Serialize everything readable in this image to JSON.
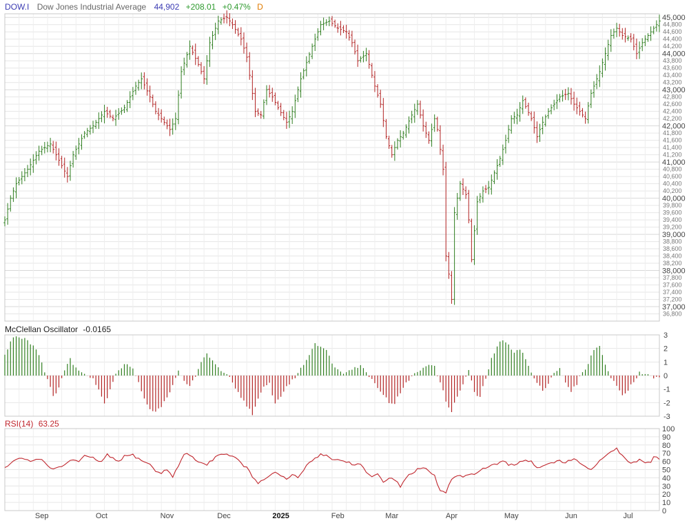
{
  "header": {
    "symbol": "DOW.I",
    "name": "Dow Jones Industrial Average",
    "last": "44,902",
    "change": "+208.01",
    "change_pct": "+0.47%",
    "period": "D"
  },
  "colors": {
    "up": "#2e7d1e",
    "down": "#b22222",
    "symbol": "#3b3bb3",
    "last": "#3b3bb3",
    "change": "#2e9a2e",
    "period": "#e07b00",
    "rsi_line": "#c0262d",
    "grid": "#e6e6e6",
    "frame": "#c8c8c8"
  },
  "chart_data": [
    {
      "type": "ohlc",
      "title": "Dow Jones Industrial Average",
      "ylim": [
        36600,
        45100
      ],
      "major_ticks": [
        37000,
        38000,
        39000,
        40000,
        41000,
        42000,
        43000,
        44000,
        45000
      ],
      "major_tick_labels": [
        "37,000",
        "38,000",
        "39,000",
        "40,000",
        "41,000",
        "42,000",
        "43,000",
        "44,000",
        "45,000"
      ],
      "minor_ticks": [
        36800,
        37200,
        37400,
        37600,
        37800,
        38200,
        38400,
        38600,
        38800,
        39200,
        39400,
        39600,
        39800,
        40200,
        40400,
        40600,
        40800,
        41200,
        41400,
        41600,
        41800,
        42200,
        42400,
        42600,
        42800,
        43200,
        43400,
        43600,
        43800,
        44200,
        44400,
        44600,
        44800
      ],
      "minor_tick_labels": [
        "36,800",
        "37,200",
        "37,400",
        "37,600",
        "37,800",
        "38,200",
        "38,400",
        "38,600",
        "38,800",
        "39,200",
        "39,400",
        "39,600",
        "39,800",
        "40,200",
        "40,400",
        "40,600",
        "40,800",
        "41,200",
        "41,400",
        "41,600",
        "41,800",
        "42,200",
        "42,400",
        "42,600",
        "42,800",
        "43,200",
        "43,400",
        "43,600",
        "43,800",
        "44,200",
        "44,400",
        "44,600",
        "44,800"
      ],
      "anchors": [
        [
          0,
          39400
        ],
        [
          2,
          40000
        ],
        [
          4,
          40400
        ],
        [
          8,
          40800
        ],
        [
          12,
          41300
        ],
        [
          16,
          41500
        ],
        [
          20,
          40900
        ],
        [
          22,
          40600
        ],
        [
          24,
          41200
        ],
        [
          28,
          41800
        ],
        [
          31,
          42000
        ],
        [
          35,
          42400
        ],
        [
          38,
          42200
        ],
        [
          42,
          42500
        ],
        [
          46,
          43100
        ],
        [
          48,
          43300
        ],
        [
          51,
          42800
        ],
        [
          53,
          42400
        ],
        [
          56,
          42100
        ],
        [
          58,
          41900
        ],
        [
          60,
          42200
        ],
        [
          62,
          43500
        ],
        [
          65,
          44200
        ],
        [
          68,
          43700
        ],
        [
          70,
          43300
        ],
        [
          72,
          44300
        ],
        [
          75,
          44900
        ],
        [
          78,
          45000
        ],
        [
          80,
          44800
        ],
        [
          83,
          44400
        ],
        [
          85,
          43900
        ],
        [
          88,
          42400
        ],
        [
          90,
          42300
        ],
        [
          92,
          43000
        ],
        [
          94,
          42800
        ],
        [
          96,
          42500
        ],
        [
          99,
          42100
        ],
        [
          101,
          42400
        ],
        [
          104,
          43300
        ],
        [
          108,
          44200
        ],
        [
          111,
          44800
        ],
        [
          114,
          44900
        ],
        [
          117,
          44700
        ],
        [
          120,
          44600
        ],
        [
          122,
          44300
        ],
        [
          124,
          43800
        ],
        [
          127,
          44000
        ],
        [
          130,
          43100
        ],
        [
          132,
          42600
        ],
        [
          134,
          41700
        ],
        [
          136,
          41200
        ],
        [
          138,
          41600
        ],
        [
          140,
          41800
        ],
        [
          143,
          42300
        ],
        [
          145,
          42600
        ],
        [
          147,
          42000
        ],
        [
          149,
          41600
        ],
        [
          151,
          42200
        ],
        [
          152,
          41900
        ],
        [
          154,
          40800
        ],
        [
          155,
          38400
        ],
        [
          156,
          37900
        ],
        [
          157,
          37200
        ],
        [
          158,
          39600
        ],
        [
          160,
          40400
        ],
        [
          162,
          40100
        ],
        [
          163,
          39400
        ],
        [
          164,
          38300
        ],
        [
          166,
          39900
        ],
        [
          168,
          40200
        ],
        [
          170,
          40300
        ],
        [
          172,
          40700
        ],
        [
          174,
          41100
        ],
        [
          176,
          41600
        ],
        [
          178,
          42200
        ],
        [
          180,
          42300
        ],
        [
          182,
          42700
        ],
        [
          185,
          42200
        ],
        [
          187,
          41700
        ],
        [
          189,
          42100
        ],
        [
          191,
          42400
        ],
        [
          193,
          42600
        ],
        [
          195,
          42800
        ],
        [
          198,
          42900
        ],
        [
          200,
          42600
        ],
        [
          202,
          42400
        ],
        [
          204,
          42200
        ],
        [
          206,
          42900
        ],
        [
          209,
          43500
        ],
        [
          211,
          44000
        ],
        [
          213,
          44500
        ],
        [
          215,
          44700
        ],
        [
          217,
          44500
        ],
        [
          220,
          44400
        ],
        [
          222,
          44000
        ],
        [
          224,
          44300
        ],
        [
          226,
          44500
        ],
        [
          228,
          44700
        ],
        [
          230,
          44900
        ]
      ]
    },
    {
      "type": "bar",
      "title": "McClellan Oscillator",
      "value_label": "-0.0165",
      "ylim": [
        -3,
        3
      ],
      "ticks": [
        -3,
        -2,
        -1,
        0,
        1,
        2,
        3
      ],
      "anchors": [
        [
          0,
          1.5
        ],
        [
          3,
          2.9
        ],
        [
          7,
          2.8
        ],
        [
          11,
          2.0
        ],
        [
          13,
          1.0
        ],
        [
          15,
          -0.3
        ],
        [
          17,
          -1.6
        ],
        [
          19,
          -0.8
        ],
        [
          21,
          0.4
        ],
        [
          23,
          1.2
        ],
        [
          26,
          0.3
        ],
        [
          29,
          0.1
        ],
        [
          31,
          -0.2
        ],
        [
          33,
          -1.0
        ],
        [
          35,
          -2.1
        ],
        [
          37,
          -1.0
        ],
        [
          39,
          0.2
        ],
        [
          41,
          0.6
        ],
        [
          43,
          0.9
        ],
        [
          45,
          0.5
        ],
        [
          47,
          -0.6
        ],
        [
          49,
          -1.6
        ],
        [
          51,
          -2.5
        ],
        [
          53,
          -2.6
        ],
        [
          55,
          -2.4
        ],
        [
          57,
          -1.5
        ],
        [
          59,
          -0.8
        ],
        [
          61,
          0.3
        ],
        [
          63,
          -0.4
        ],
        [
          65,
          -0.8
        ],
        [
          67,
          0.0
        ],
        [
          69,
          0.9
        ],
        [
          71,
          1.6
        ],
        [
          73,
          1.2
        ],
        [
          75,
          0.5
        ],
        [
          77,
          0.2
        ],
        [
          79,
          -0.2
        ],
        [
          81,
          -1.0
        ],
        [
          83,
          -1.6
        ],
        [
          85,
          -2.2
        ],
        [
          87,
          -2.8
        ],
        [
          89,
          -1.8
        ],
        [
          91,
          -0.9
        ],
        [
          93,
          -0.6
        ],
        [
          95,
          -2.1
        ],
        [
          97,
          -1.5
        ],
        [
          99,
          -0.8
        ],
        [
          101,
          -0.4
        ],
        [
          103,
          0.2
        ],
        [
          105,
          0.8
        ],
        [
          107,
          1.6
        ],
        [
          109,
          2.4
        ],
        [
          111,
          2.2
        ],
        [
          113,
          1.8
        ],
        [
          115,
          1.0
        ],
        [
          117,
          0.4
        ],
        [
          119,
          0.2
        ],
        [
          121,
          0.5
        ],
        [
          123,
          0.6
        ],
        [
          125,
          0.7
        ],
        [
          127,
          0.3
        ],
        [
          129,
          -0.3
        ],
        [
          131,
          -0.8
        ],
        [
          133,
          -1.4
        ],
        [
          135,
          -2.0
        ],
        [
          137,
          -2.0
        ],
        [
          139,
          -1.3
        ],
        [
          141,
          -0.6
        ],
        [
          143,
          0.0
        ],
        [
          145,
          0.2
        ],
        [
          147,
          0.6
        ],
        [
          149,
          0.9
        ],
        [
          151,
          0.6
        ],
        [
          153,
          -0.5
        ],
        [
          155,
          -1.9
        ],
        [
          157,
          -2.6
        ],
        [
          159,
          -1.6
        ],
        [
          161,
          -0.6
        ],
        [
          163,
          0.4
        ],
        [
          165,
          -1.3
        ],
        [
          167,
          -1.6
        ],
        [
          169,
          -0.2
        ],
        [
          171,
          1.2
        ],
        [
          173,
          2.2
        ],
        [
          175,
          2.6
        ],
        [
          177,
          2.2
        ],
        [
          179,
          1.8
        ],
        [
          181,
          2.0
        ],
        [
          183,
          1.2
        ],
        [
          185,
          0.2
        ],
        [
          187,
          -0.6
        ],
        [
          189,
          -1.1
        ],
        [
          191,
          -0.5
        ],
        [
          193,
          0.2
        ],
        [
          195,
          0.6
        ],
        [
          197,
          -0.6
        ],
        [
          199,
          -1.2
        ],
        [
          201,
          -0.6
        ],
        [
          203,
          0.3
        ],
        [
          205,
          0.8
        ],
        [
          207,
          2.0
        ],
        [
          209,
          2.1
        ],
        [
          211,
          0.9
        ],
        [
          213,
          -0.2
        ],
        [
          215,
          -0.8
        ],
        [
          217,
          -1.4
        ],
        [
          219,
          -1.0
        ],
        [
          221,
          -0.4
        ],
        [
          223,
          0.2
        ],
        [
          225,
          0.2
        ],
        [
          227,
          -0.1
        ],
        [
          230,
          -0.2
        ]
      ]
    },
    {
      "type": "line",
      "title": "RSI(14)",
      "value_label": "63.25",
      "ylim": [
        0,
        100
      ],
      "ticks": [
        0,
        10,
        20,
        30,
        40,
        50,
        60,
        70,
        80,
        90,
        100
      ],
      "anchors": [
        [
          0,
          52
        ],
        [
          3,
          60
        ],
        [
          6,
          64
        ],
        [
          9,
          60
        ],
        [
          12,
          64
        ],
        [
          15,
          56
        ],
        [
          17,
          50
        ],
        [
          19,
          52
        ],
        [
          21,
          56
        ],
        [
          23,
          62
        ],
        [
          26,
          60
        ],
        [
          28,
          66
        ],
        [
          31,
          64
        ],
        [
          34,
          59
        ],
        [
          36,
          68
        ],
        [
          38,
          63
        ],
        [
          40,
          60
        ],
        [
          42,
          66
        ],
        [
          45,
          68
        ],
        [
          47,
          63
        ],
        [
          49,
          60
        ],
        [
          51,
          56
        ],
        [
          53,
          48
        ],
        [
          55,
          46
        ],
        [
          57,
          50
        ],
        [
          59,
          42
        ],
        [
          61,
          54
        ],
        [
          63,
          69
        ],
        [
          65,
          68
        ],
        [
          67,
          62
        ],
        [
          69,
          58
        ],
        [
          71,
          56
        ],
        [
          73,
          62
        ],
        [
          75,
          69
        ],
        [
          77,
          69
        ],
        [
          79,
          68
        ],
        [
          81,
          64
        ],
        [
          83,
          58
        ],
        [
          85,
          52
        ],
        [
          87,
          42
        ],
        [
          89,
          32
        ],
        [
          91,
          38
        ],
        [
          93,
          43
        ],
        [
          95,
          46
        ],
        [
          97,
          42
        ],
        [
          99,
          38
        ],
        [
          101,
          44
        ],
        [
          103,
          40
        ],
        [
          105,
          50
        ],
        [
          107,
          58
        ],
        [
          109,
          64
        ],
        [
          111,
          69
        ],
        [
          113,
          67
        ],
        [
          115,
          63
        ],
        [
          117,
          62
        ],
        [
          119,
          60
        ],
        [
          121,
          59
        ],
        [
          123,
          55
        ],
        [
          125,
          58
        ],
        [
          127,
          46
        ],
        [
          129,
          40
        ],
        [
          131,
          44
        ],
        [
          133,
          36
        ],
        [
          135,
          40
        ],
        [
          137,
          37
        ],
        [
          139,
          30
        ],
        [
          141,
          40
        ],
        [
          143,
          46
        ],
        [
          145,
          50
        ],
        [
          147,
          52
        ],
        [
          149,
          48
        ],
        [
          151,
          42
        ],
        [
          153,
          24
        ],
        [
          155,
          22
        ],
        [
          157,
          38
        ],
        [
          159,
          43
        ],
        [
          161,
          40
        ],
        [
          163,
          43
        ],
        [
          165,
          45
        ],
        [
          167,
          50
        ],
        [
          169,
          52
        ],
        [
          171,
          55
        ],
        [
          173,
          56
        ],
        [
          175,
          60
        ],
        [
          177,
          56
        ],
        [
          179,
          55
        ],
        [
          181,
          60
        ],
        [
          183,
          62
        ],
        [
          185,
          60
        ],
        [
          187,
          52
        ],
        [
          189,
          55
        ],
        [
          191,
          58
        ],
        [
          193,
          59
        ],
        [
          195,
          60
        ],
        [
          197,
          58
        ],
        [
          199,
          62
        ],
        [
          201,
          62
        ],
        [
          203,
          55
        ],
        [
          205,
          50
        ],
        [
          207,
          52
        ],
        [
          209,
          60
        ],
        [
          211,
          66
        ],
        [
          213,
          72
        ],
        [
          215,
          76
        ],
        [
          217,
          66
        ],
        [
          219,
          60
        ],
        [
          221,
          58
        ],
        [
          223,
          62
        ],
        [
          225,
          58
        ],
        [
          227,
          60
        ],
        [
          228,
          65
        ],
        [
          230,
          63
        ]
      ]
    }
  ],
  "x_axis": {
    "labels": [
      "Sep",
      "Oct",
      "Nov",
      "Dec",
      "2025",
      "Feb",
      "Mar",
      "Apr",
      "May",
      "Jun",
      "Jul"
    ],
    "label_positions": [
      13,
      34,
      57,
      77,
      97,
      117,
      136,
      157,
      178,
      199,
      219
    ],
    "bold": [
      false,
      false,
      false,
      false,
      true,
      false,
      false,
      false,
      false,
      false,
      false
    ],
    "bar_count": 231
  }
}
